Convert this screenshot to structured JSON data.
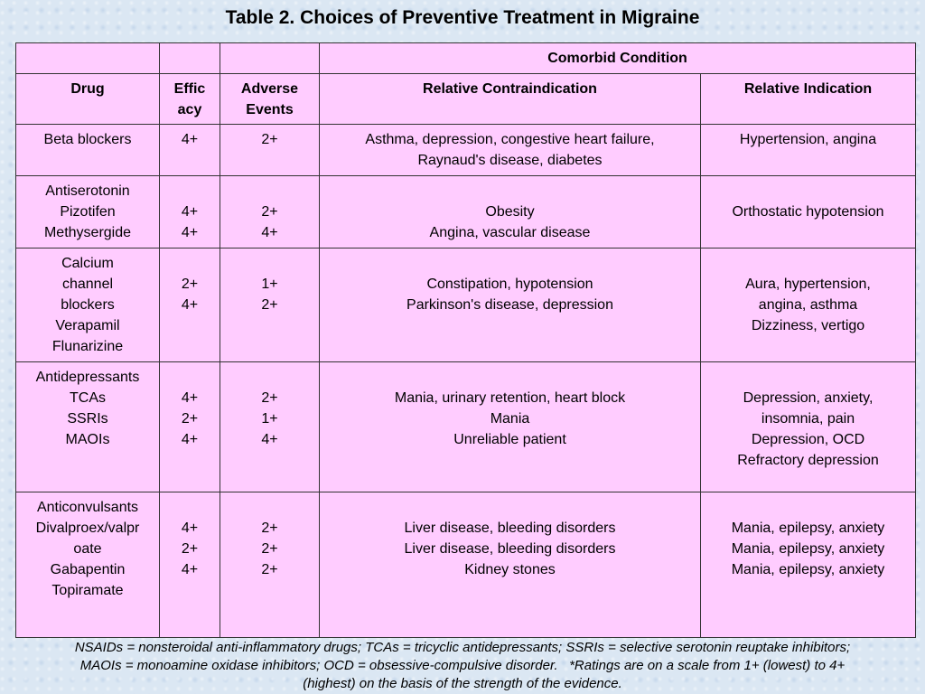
{
  "title": "Table 2. Choices of Preventive Treatment in Migraine",
  "table": {
    "group_header": "Comorbid Condition",
    "columns": [
      [
        "Drug"
      ],
      [
        "Effic",
        "acy"
      ],
      [
        "Adverse",
        "Events"
      ],
      [
        "Relative Contraindication"
      ],
      [
        "Relative Indication"
      ]
    ],
    "rows": [
      [
        [
          "Beta blockers"
        ],
        [
          "4+"
        ],
        [
          "2+"
        ],
        [
          "Asthma, depression, congestive heart failure,",
          "Raynaud's disease, diabetes"
        ],
        [
          "Hypertension, angina"
        ]
      ],
      [
        [
          "Antiserotonin",
          "Pizotifen",
          "Methysergide"
        ],
        [
          "4+",
          "4+"
        ],
        [
          "2+",
          "4+"
        ],
        [
          "Obesity",
          "Angina, vascular disease"
        ],
        [
          "Orthostatic hypotension"
        ]
      ],
      [
        [
          "Calcium",
          "channel",
          "blockers",
          "Verapamil",
          "Flunarizine"
        ],
        [
          "2+",
          "4+"
        ],
        [
          "1+",
          "2+"
        ],
        [
          "Constipation, hypotension",
          "Parkinson's disease, depression"
        ],
        [
          "Aura, hypertension,",
          "angina, asthma",
          "Dizziness, vertigo"
        ]
      ],
      [
        [
          "Antidepressants",
          "TCAs",
          "SSRIs",
          "MAOIs"
        ],
        [
          "4+",
          "2+",
          "4+"
        ],
        [
          "2+",
          "1+",
          "4+"
        ],
        [
          "Mania, urinary retention, heart block",
          "Mania",
          "Unreliable patient"
        ],
        [
          "Depression, anxiety,",
          "insomnia, pain",
          "Depression, OCD",
          "Refractory depression"
        ]
      ],
      [
        [
          "Anticonvulsants",
          "Divalproex/valpr",
          "oate",
          "Gabapentin",
          "Topiramate"
        ],
        [
          "4+",
          "2+",
          "4+"
        ],
        [
          "2+",
          "2+",
          "2+"
        ],
        [
          "Liver disease, bleeding disorders",
          "Liver disease, bleeding disorders",
          "Kidney stones"
        ],
        [
          "Mania, epilepsy, anxiety",
          "Mania, epilepsy, anxiety",
          "Mania, epilepsy, anxiety"
        ]
      ]
    ]
  },
  "footnote": [
    "NSAIDs = nonsteroidal anti-inflammatory drugs; TCAs = tricyclic antidepressants; SSRIs = selective serotonin reuptake inhibitors;",
    "MAOIs = monoamine oxidase inhibitors; OCD = obsessive-compulsive disorder.   *Ratings are on a scale from 1+ (lowest) to 4+",
    "(highest) on the basis of the strength of the evidence."
  ]
}
